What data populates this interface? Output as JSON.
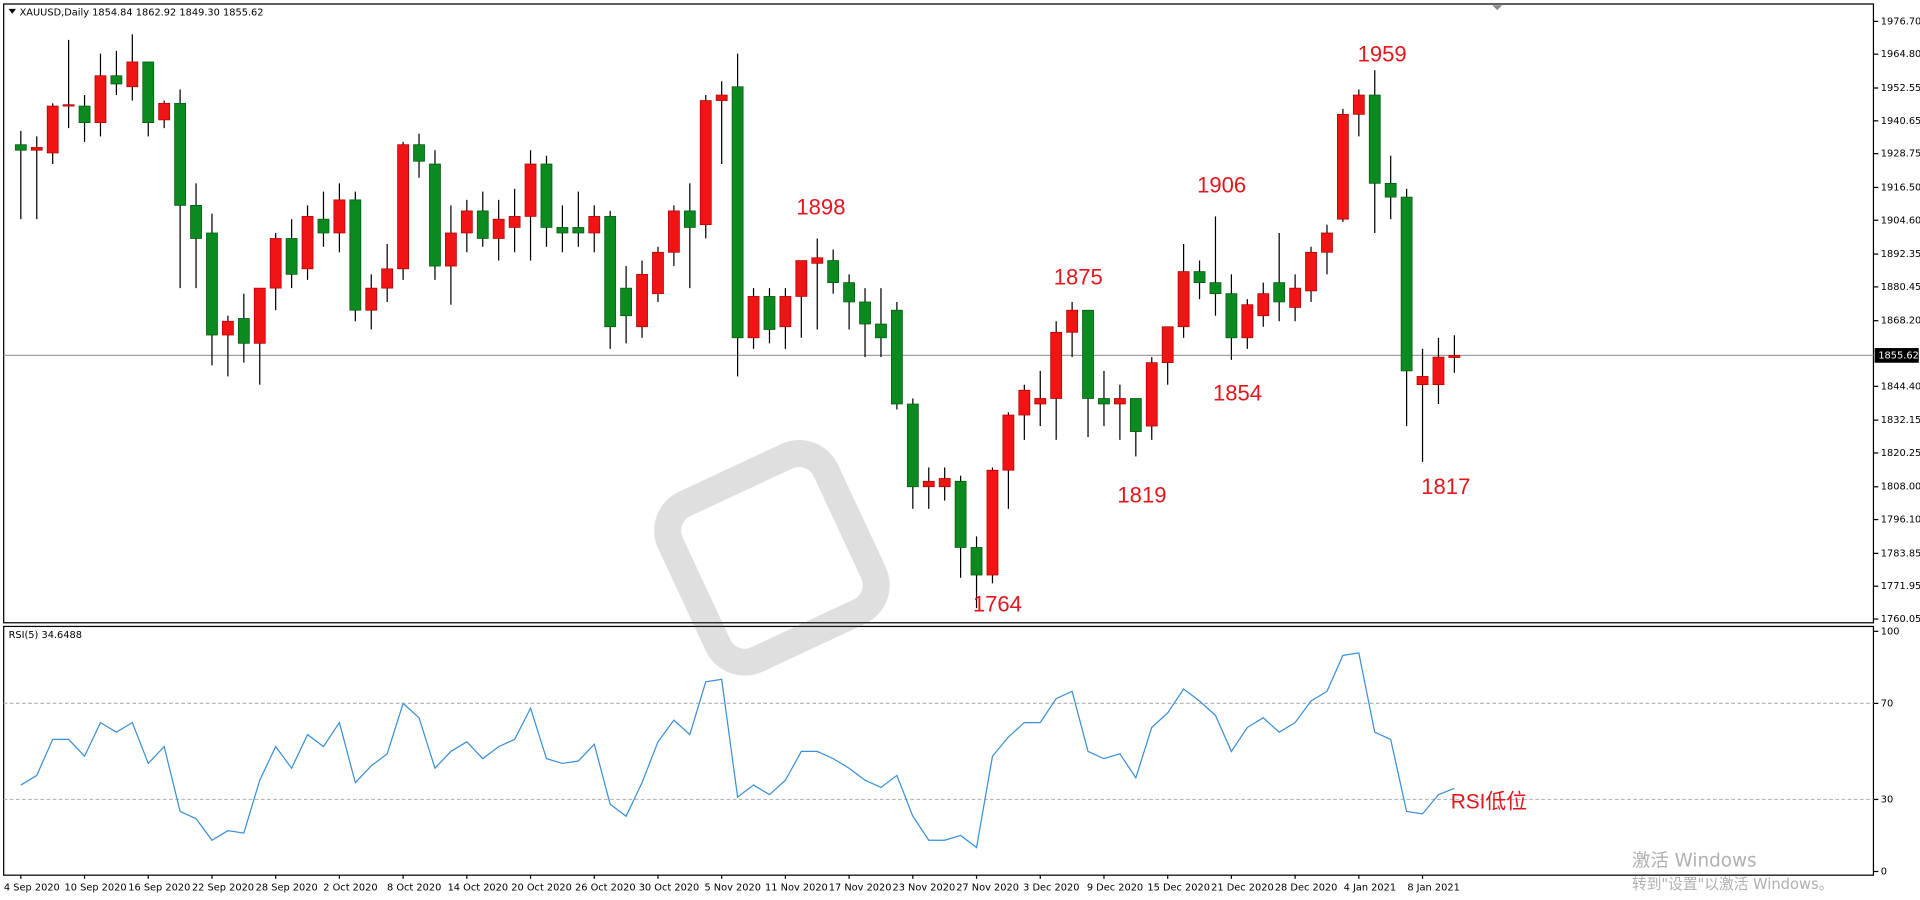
{
  "chart_data": [
    {
      "type": "candlestick",
      "header": "XAUUSD,Daily  1854.84 1862.92 1849.30 1855.62",
      "categories": [
        "4 Sep 2020",
        null,
        null,
        null,
        "10 Sep 2020",
        null,
        null,
        null,
        "16 Sep 2020",
        null,
        null,
        null,
        "22 Sep 2020",
        null,
        null,
        null,
        "28 Sep 2020",
        null,
        null,
        null,
        "2 Oct 2020",
        null,
        null,
        null,
        "8 Oct 2020",
        null,
        null,
        null,
        "14 Oct 2020",
        null,
        null,
        null,
        "20 Oct 2020",
        null,
        null,
        null,
        "26 Oct 2020",
        null,
        null,
        null,
        "30 Oct 2020",
        null,
        null,
        null,
        "5 Nov 2020",
        null,
        null,
        null,
        "11 Nov 2020",
        null,
        null,
        null,
        "17 Nov 2020",
        null,
        null,
        null,
        "23 Nov 2020",
        null,
        null,
        null,
        "27 Nov 2020",
        null,
        null,
        null,
        "3 Dec 2020",
        null,
        null,
        null,
        "9 Dec 2020",
        null,
        null,
        null,
        "15 Dec 2020",
        null,
        null,
        null,
        "21 Dec 2020",
        null,
        null,
        null,
        "28 Dec 2020",
        null,
        null,
        null,
        "4 Jan 2021",
        null,
        null,
        null,
        "8 Jan 2021",
        null,
        null
      ],
      "open": [
        1932,
        1930,
        1929,
        1946,
        1946,
        1940,
        1957,
        1953,
        1962,
        1941,
        1947,
        1910,
        1900,
        1863,
        1869,
        1860,
        1880,
        1898,
        1887,
        1905,
        1900,
        1912,
        1872,
        1880,
        1887,
        1932,
        1925,
        1888,
        1900,
        1908,
        1898,
        1902,
        1906,
        1925,
        1902,
        1902,
        1900,
        1906,
        1880,
        1866,
        1878,
        1893,
        1908,
        1903,
        1948,
        1953,
        1862,
        1877,
        1866,
        1877,
        1889,
        1890,
        1882,
        1875,
        1867,
        1872,
        1838,
        1808,
        1808,
        1810,
        1786,
        1776,
        1814,
        1834,
        1838,
        1840,
        1864,
        1872,
        1840,
        1838,
        1840,
        1830,
        1853,
        1866,
        1886,
        1882,
        1878,
        1862,
        1870,
        1882,
        1873,
        1879,
        1893,
        1905,
        1943,
        1950,
        1918,
        1913,
        1845,
        1845,
        1854.84
      ],
      "high": [
        1937,
        1935,
        1947,
        1970,
        1950,
        1965,
        1966,
        1972,
        1962,
        1948,
        1952,
        1918,
        1907,
        1870,
        1878,
        1880,
        1900,
        1905,
        1910,
        1915,
        1918,
        1915,
        1885,
        1896,
        1933,
        1936,
        1930,
        1910,
        1912,
        1915,
        1912,
        1916,
        1930,
        1928,
        1910,
        1915,
        1910,
        1908,
        1888,
        1890,
        1895,
        1910,
        1918,
        1950,
        1955,
        1965,
        1880,
        1880,
        1880,
        1890,
        1898,
        1894,
        1885,
        1880,
        1880,
        1875,
        1840,
        1815,
        1815,
        1812,
        1790,
        1815,
        1835,
        1845,
        1850,
        1868,
        1875,
        1872,
        1850,
        1845,
        1840,
        1855,
        1866,
        1896,
        1890,
        1906,
        1885,
        1876,
        1882,
        1900,
        1885,
        1895,
        1903,
        1945,
        1952,
        1959,
        1928,
        1916,
        1858,
        1862,
        1862.92
      ],
      "low": [
        1905,
        1905,
        1925,
        1938,
        1933,
        1935,
        1950,
        1948,
        1935,
        1938,
        1880,
        1880,
        1852,
        1848,
        1853,
        1845,
        1872,
        1880,
        1883,
        1895,
        1893,
        1868,
        1865,
        1875,
        1883,
        1920,
        1883,
        1874,
        1893,
        1895,
        1890,
        1893,
        1890,
        1895,
        1893,
        1895,
        1893,
        1858,
        1860,
        1862,
        1875,
        1888,
        1880,
        1898,
        1925,
        1848,
        1858,
        1860,
        1858,
        1862,
        1865,
        1878,
        1865,
        1855,
        1855,
        1836,
        1800,
        1800,
        1803,
        1775,
        1764,
        1773,
        1800,
        1825,
        1830,
        1825,
        1855,
        1826,
        1830,
        1825,
        1819,
        1825,
        1845,
        1862,
        1876,
        1870,
        1854,
        1858,
        1866,
        1868,
        1868,
        1875,
        1885,
        1904,
        1935,
        1900,
        1905,
        1830,
        1817,
        1838,
        1849.3
      ],
      "close": [
        1930,
        1931,
        1946,
        1946.5,
        1940,
        1957,
        1954,
        1962,
        1940,
        1947,
        1910,
        1898,
        1863,
        1868,
        1860,
        1880,
        1898,
        1885,
        1906,
        1900,
        1912,
        1872,
        1880,
        1887,
        1932,
        1926,
        1888,
        1900,
        1908,
        1898,
        1905,
        1906,
        1925,
        1902,
        1900,
        1900,
        1906,
        1866,
        1870,
        1885,
        1893,
        1908,
        1902,
        1948,
        1950,
        1862,
        1877,
        1865,
        1877,
        1890,
        1891,
        1882,
        1875,
        1867,
        1862,
        1838,
        1808,
        1810,
        1811,
        1786,
        1776,
        1814,
        1834,
        1843,
        1840,
        1864,
        1872,
        1840,
        1838,
        1840,
        1828,
        1853,
        1866,
        1886,
        1882,
        1878,
        1862,
        1874,
        1878,
        1875,
        1880,
        1893,
        1900,
        1943,
        1950,
        1918,
        1913,
        1850,
        1848,
        1855,
        1855.62
      ],
      "up_color": "#f01414",
      "down_color": "#0b8a1f",
      "ylim": [
        1758.7,
        1983.0
      ],
      "yticks": [
        {
          "value": 1976.7,
          "label": "1976.70"
        },
        {
          "value": 1964.8,
          "label": "1964.80"
        },
        {
          "value": 1952.55,
          "label": "1952.55"
        },
        {
          "value": 1940.65,
          "label": "1940.65"
        },
        {
          "value": 1928.75,
          "label": "1928.75"
        },
        {
          "value": 1916.5,
          "label": "1916.50"
        },
        {
          "value": 1904.6,
          "label": "1904.60"
        },
        {
          "value": 1892.35,
          "label": "1892.35"
        },
        {
          "value": 1880.45,
          "label": "1880.45"
        },
        {
          "value": 1868.2,
          "label": "1868.20"
        },
        {
          "value": 1844.4,
          "label": "1844.40"
        },
        {
          "value": 1832.15,
          "label": "1832.15"
        },
        {
          "value": 1820.25,
          "label": "1820.25"
        },
        {
          "value": 1808.0,
          "label": "1808.00"
        },
        {
          "value": 1796.1,
          "label": "1796.10"
        },
        {
          "value": 1783.85,
          "label": "1783.85"
        },
        {
          "value": 1771.95,
          "label": "1771.95"
        },
        {
          "value": 1760.05,
          "label": "1760.05"
        }
      ],
      "last_price": 1855.62,
      "annotations": [
        1898,
        1875,
        1906,
        1959,
        1854,
        1819,
        1764,
        1817
      ]
    },
    {
      "type": "line",
      "title": "RSI(5) 34.6488",
      "values": [
        36,
        40,
        55,
        55,
        48,
        62,
        58,
        62,
        45,
        52,
        25,
        22,
        13,
        17,
        16,
        38,
        52,
        43,
        57,
        52,
        62,
        37,
        44,
        49,
        70,
        64,
        43,
        50,
        54,
        47,
        52,
        55,
        68,
        47,
        45,
        46,
        53,
        28,
        23,
        37,
        54,
        63,
        57,
        79,
        80,
        31,
        36,
        32,
        38,
        50,
        50,
        47,
        43,
        38,
        35,
        40,
        23,
        13,
        13,
        15,
        10,
        48,
        56,
        62,
        62,
        72,
        75,
        50,
        47,
        49,
        39,
        60,
        66,
        76,
        71,
        65,
        50,
        60,
        64,
        58,
        62,
        71,
        75,
        90,
        91,
        58,
        55,
        25,
        24,
        32,
        34.6488
      ],
      "color": "#3a8fd8",
      "ylim": [
        0,
        100
      ],
      "yticks": [
        0,
        30,
        70,
        100
      ],
      "annotation": "RSI低位"
    }
  ],
  "watermark": [
    "激活 Windows",
    "转到\"设置\"以激活 Windows。"
  ]
}
